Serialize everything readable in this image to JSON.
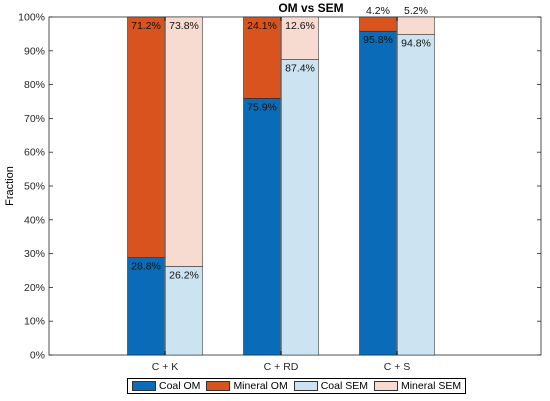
{
  "chart_data": {
    "type": "bar",
    "stacked": true,
    "title": "OM vs SEM",
    "xlabel": "",
    "ylabel": "Fraction",
    "ylim": [
      0,
      100
    ],
    "yticks": [
      "0%",
      "10%",
      "20%",
      "30%",
      "40%",
      "50%",
      "60%",
      "70%",
      "80%",
      "90%",
      "100%"
    ],
    "categories": [
      "C + K",
      "C + RD",
      "C + S"
    ],
    "groups": [
      {
        "name": "OM",
        "series": [
          {
            "name": "Coal OM",
            "color": "#0A6CB8",
            "values": [
              28.8,
              75.9,
              95.8
            ],
            "labels": [
              "28.8%",
              "75.9%",
              "95.8%"
            ]
          },
          {
            "name": "Mineral OM",
            "color": "#D9531E",
            "values": [
              71.2,
              24.1,
              4.2
            ],
            "labels": [
              "71.2%",
              "24.1%",
              "4.2%"
            ]
          }
        ]
      },
      {
        "name": "SEM",
        "series": [
          {
            "name": "Coal SEM",
            "color": "#CCE3F1",
            "values": [
              26.2,
              87.4,
              94.8
            ],
            "labels": [
              "26.2%",
              "87.4%",
              "94.8%"
            ]
          },
          {
            "name": "Mineral SEM",
            "color": "#F7DBD0",
            "values": [
              73.8,
              12.6,
              5.2
            ],
            "labels": [
              "73.8%",
              "12.6%",
              "5.2%"
            ]
          }
        ]
      }
    ],
    "grid": false,
    "legend_position": "bottom"
  },
  "legend": [
    {
      "label": "Coal OM",
      "color": "#0A6CB8"
    },
    {
      "label": "Mineral OM",
      "color": "#D9531E"
    },
    {
      "label": "Coal SEM",
      "color": "#CCE3F1"
    },
    {
      "label": "Mineral SEM",
      "color": "#F7DBD0"
    }
  ]
}
